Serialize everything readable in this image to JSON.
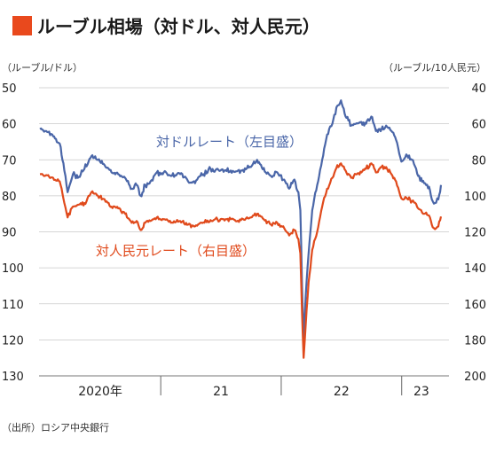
{
  "title": "ルーブル相場（対ドル、対人民元）",
  "source": "（出所）ロシア中央銀行",
  "colors": {
    "accent_square": "#e9491d",
    "usd_line": "#4a66a8",
    "cny_line": "#e04a1c",
    "grid": "#c8c8c8"
  },
  "chart_data": {
    "type": "line",
    "title": "ルーブル相場（対ドル、対人民元）",
    "left_axis": {
      "label": "（ルーブル/ドル）",
      "range": [
        50,
        130
      ],
      "inverted": true,
      "ticks": [
        50,
        60,
        70,
        80,
        90,
        100,
        110,
        120,
        130
      ]
    },
    "right_axis": {
      "label": "（ルーブル/10人民元）",
      "range": [
        40,
        200
      ],
      "inverted": true,
      "ticks": [
        40,
        60,
        80,
        100,
        120,
        140,
        160,
        180,
        200
      ]
    },
    "x_labels": [
      "2020年",
      "21",
      "22",
      "23"
    ],
    "x_range": [
      "2020-01",
      "2023-04"
    ],
    "grid": true,
    "series": [
      {
        "name": "対ドルレート（左目盛）",
        "axis": "left",
        "points": [
          [
            "2020-01-01",
            61.5
          ],
          [
            "2020-01-20",
            62.0
          ],
          [
            "2020-02-10",
            63.5
          ],
          [
            "2020-03-01",
            65.5
          ],
          [
            "2020-03-15",
            73.0
          ],
          [
            "2020-03-25",
            79.0
          ],
          [
            "2020-04-10",
            74.0
          ],
          [
            "2020-04-25",
            75.0
          ],
          [
            "2020-05-15",
            72.5
          ],
          [
            "2020-06-05",
            69.0
          ],
          [
            "2020-06-25",
            70.0
          ],
          [
            "2020-07-15",
            71.5
          ],
          [
            "2020-08-05",
            73.5
          ],
          [
            "2020-08-25",
            74.0
          ],
          [
            "2020-09-15",
            75.0
          ],
          [
            "2020-10-05",
            78.0
          ],
          [
            "2020-10-20",
            77.0
          ],
          [
            "2020-11-01",
            80.0
          ],
          [
            "2020-11-15",
            77.0
          ],
          [
            "2020-12-01",
            76.0
          ],
          [
            "2020-12-20",
            73.5
          ],
          [
            "2021-01-10",
            73.5
          ],
          [
            "2021-02-01",
            74.5
          ],
          [
            "2021-03-01",
            74.0
          ],
          [
            "2021-03-25",
            76.0
          ],
          [
            "2021-04-15",
            76.5
          ],
          [
            "2021-05-01",
            74.5
          ],
          [
            "2021-06-01",
            72.5
          ],
          [
            "2021-07-01",
            73.0
          ],
          [
            "2021-08-01",
            73.0
          ],
          [
            "2021-09-01",
            73.0
          ],
          [
            "2021-10-01",
            72.0
          ],
          [
            "2021-10-20",
            70.0
          ],
          [
            "2021-11-15",
            73.5
          ],
          [
            "2021-12-01",
            74.5
          ],
          [
            "2021-12-20",
            73.5
          ],
          [
            "2022-01-10",
            75.5
          ],
          [
            "2022-01-25",
            78.0
          ],
          [
            "2022-02-10",
            75.5
          ],
          [
            "2022-02-22",
            79.0
          ],
          [
            "2022-02-28",
            84.0
          ],
          [
            "2022-03-05",
            105.0
          ],
          [
            "2022-03-10",
            120.0
          ],
          [
            "2022-03-16",
            108.0
          ],
          [
            "2022-03-25",
            96.0
          ],
          [
            "2022-04-05",
            84.0
          ],
          [
            "2022-04-20",
            77.0
          ],
          [
            "2022-05-05",
            70.0
          ],
          [
            "2022-05-20",
            63.0
          ],
          [
            "2022-06-05",
            60.0
          ],
          [
            "2022-06-20",
            55.0
          ],
          [
            "2022-07-01",
            53.5
          ],
          [
            "2022-07-15",
            58.0
          ],
          [
            "2022-08-01",
            60.5
          ],
          [
            "2022-08-15",
            60.0
          ],
          [
            "2022-09-01",
            59.5
          ],
          [
            "2022-09-15",
            60.0
          ],
          [
            "2022-10-01",
            58.0
          ],
          [
            "2022-10-15",
            62.0
          ],
          [
            "2022-11-01",
            61.5
          ],
          [
            "2022-11-15",
            60.5
          ],
          [
            "2022-12-01",
            62.0
          ],
          [
            "2022-12-15",
            64.5
          ],
          [
            "2022-12-31",
            70.5
          ],
          [
            "2023-01-15",
            68.5
          ],
          [
            "2023-02-01",
            70.0
          ],
          [
            "2023-02-20",
            74.5
          ],
          [
            "2023-03-10",
            76.5
          ],
          [
            "2023-03-25",
            77.5
          ],
          [
            "2023-04-05",
            81.5
          ],
          [
            "2023-04-12",
            82.0
          ],
          [
            "2023-04-22",
            81.0
          ],
          [
            "2023-04-30",
            77.0
          ]
        ]
      },
      {
        "name": "対人民元レート（右目盛）",
        "axis": "right",
        "points": [
          [
            "2020-01-01",
            88.0
          ],
          [
            "2020-01-20",
            88.5
          ],
          [
            "2020-02-10",
            90.0
          ],
          [
            "2020-03-01",
            92.0
          ],
          [
            "2020-03-15",
            104.0
          ],
          [
            "2020-03-25",
            112.0
          ],
          [
            "2020-04-10",
            106.0
          ],
          [
            "2020-04-25",
            105.0
          ],
          [
            "2020-05-15",
            104.0
          ],
          [
            "2020-06-05",
            98.0
          ],
          [
            "2020-06-25",
            100.0
          ],
          [
            "2020-07-15",
            102.0
          ],
          [
            "2020-08-05",
            106.0
          ],
          [
            "2020-08-25",
            107.0
          ],
          [
            "2020-09-15",
            110.0
          ],
          [
            "2020-10-05",
            115.0
          ],
          [
            "2020-10-20",
            114.0
          ],
          [
            "2020-11-01",
            119.0
          ],
          [
            "2020-11-15",
            115.0
          ],
          [
            "2020-12-01",
            114.0
          ],
          [
            "2020-12-20",
            112.0
          ],
          [
            "2021-01-10",
            113.0
          ],
          [
            "2021-02-01",
            115.0
          ],
          [
            "2021-03-01",
            114.0
          ],
          [
            "2021-03-25",
            116.0
          ],
          [
            "2021-04-15",
            117.0
          ],
          [
            "2021-05-01",
            115.0
          ],
          [
            "2021-06-01",
            113.5
          ],
          [
            "2021-07-01",
            113.0
          ],
          [
            "2021-08-01",
            113.0
          ],
          [
            "2021-09-01",
            113.5
          ],
          [
            "2021-10-01",
            112.0
          ],
          [
            "2021-10-20",
            110.0
          ],
          [
            "2021-11-15",
            113.5
          ],
          [
            "2021-12-01",
            116.0
          ],
          [
            "2021-12-20",
            115.0
          ],
          [
            "2022-01-10",
            118.0
          ],
          [
            "2022-01-25",
            122.0
          ],
          [
            "2022-02-10",
            119.0
          ],
          [
            "2022-02-22",
            124.0
          ],
          [
            "2022-02-28",
            132.0
          ],
          [
            "2022-03-05",
            165.0
          ],
          [
            "2022-03-10",
            190.0
          ],
          [
            "2022-03-16",
            172.0
          ],
          [
            "2022-03-25",
            148.0
          ],
          [
            "2022-04-05",
            130.0
          ],
          [
            "2022-04-20",
            120.0
          ],
          [
            "2022-05-05",
            106.0
          ],
          [
            "2022-05-20",
            96.0
          ],
          [
            "2022-06-05",
            90.0
          ],
          [
            "2022-06-20",
            83.0
          ],
          [
            "2022-07-01",
            82.0
          ],
          [
            "2022-07-15",
            86.0
          ],
          [
            "2022-08-01",
            90.0
          ],
          [
            "2022-08-15",
            88.0
          ],
          [
            "2022-09-01",
            87.0
          ],
          [
            "2022-09-15",
            85.0
          ],
          [
            "2022-10-01",
            82.0
          ],
          [
            "2022-10-15",
            87.0
          ],
          [
            "2022-11-01",
            84.0
          ],
          [
            "2022-11-15",
            84.0
          ],
          [
            "2022-12-01",
            88.0
          ],
          [
            "2022-12-15",
            92.0
          ],
          [
            "2022-12-31",
            101.5
          ],
          [
            "2023-01-15",
            101.0
          ],
          [
            "2023-02-01",
            103.0
          ],
          [
            "2023-02-20",
            107.0
          ],
          [
            "2023-03-10",
            110.0
          ],
          [
            "2023-03-25",
            111.0
          ],
          [
            "2023-04-05",
            117.5
          ],
          [
            "2023-04-12",
            118.5
          ],
          [
            "2023-04-22",
            117.0
          ],
          [
            "2023-04-30",
            111.5
          ]
        ]
      }
    ]
  }
}
